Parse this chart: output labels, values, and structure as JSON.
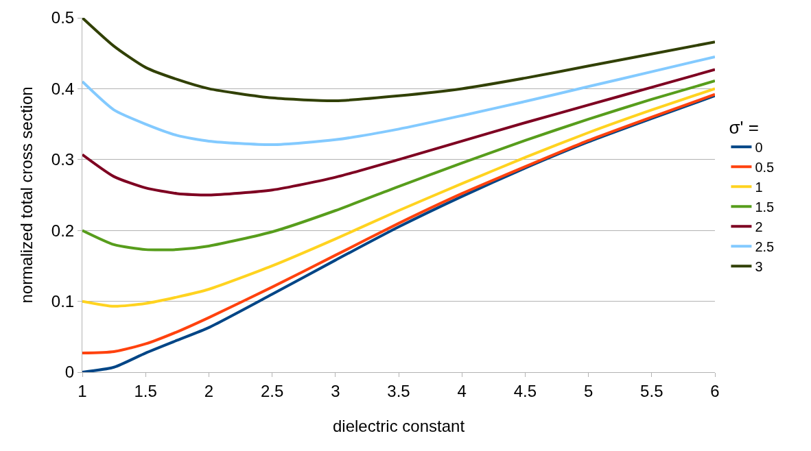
{
  "chart_data": {
    "type": "line",
    "xlabel": "dielectric constant",
    "ylabel": "normalized total cross section",
    "legend_title": "σ' =",
    "x": [
      1,
      1.25,
      1.5,
      1.75,
      2,
      2.5,
      3,
      3.5,
      4,
      4.5,
      5,
      5.5,
      6
    ],
    "xlim": [
      1,
      6
    ],
    "xticks": [
      1,
      1.5,
      2,
      2.5,
      3,
      3.5,
      4,
      4.5,
      5,
      5.5,
      6
    ],
    "ylim": [
      0,
      0.5
    ],
    "yticks": [
      0,
      0.1,
      0.2,
      0.3,
      0.4,
      0.5
    ],
    "grid": "y",
    "legend": "right",
    "marker": "none",
    "line_style": "solid",
    "series": [
      {
        "name": "0",
        "color": "#004586",
        "values": [
          0,
          0.007,
          0.027,
          0.045,
          0.063,
          0.11,
          0.158,
          0.205,
          0.248,
          0.288,
          0.325,
          0.358,
          0.39
        ]
      },
      {
        "name": "0.5",
        "color": "#ff420e",
        "values": [
          0.027,
          0.029,
          0.04,
          0.057,
          0.077,
          0.12,
          0.165,
          0.21,
          0.252,
          0.29,
          0.327,
          0.36,
          0.392
        ]
      },
      {
        "name": "1",
        "color": "#ffd320",
        "values": [
          0.1,
          0.093,
          0.097,
          0.106,
          0.117,
          0.15,
          0.188,
          0.228,
          0.266,
          0.303,
          0.338,
          0.37,
          0.4
        ]
      },
      {
        "name": "1.5",
        "color": "#579d1c",
        "values": [
          0.2,
          0.18,
          0.173,
          0.173,
          0.178,
          0.198,
          0.228,
          0.262,
          0.295,
          0.327,
          0.357,
          0.385,
          0.411
        ]
      },
      {
        "name": "2",
        "color": "#7e0021",
        "values": [
          0.307,
          0.276,
          0.26,
          0.252,
          0.25,
          0.257,
          0.275,
          0.3,
          0.326,
          0.352,
          0.377,
          0.402,
          0.427
        ]
      },
      {
        "name": "2.5",
        "color": "#83caff",
        "values": [
          0.41,
          0.37,
          0.35,
          0.334,
          0.326,
          0.321,
          0.328,
          0.343,
          0.362,
          0.382,
          0.403,
          0.424,
          0.445
        ]
      },
      {
        "name": "3",
        "color": "#314004",
        "values": [
          0.5,
          0.46,
          0.43,
          0.413,
          0.4,
          0.387,
          0.383,
          0.39,
          0.4,
          0.415,
          0.432,
          0.449,
          0.466
        ]
      }
    ]
  }
}
